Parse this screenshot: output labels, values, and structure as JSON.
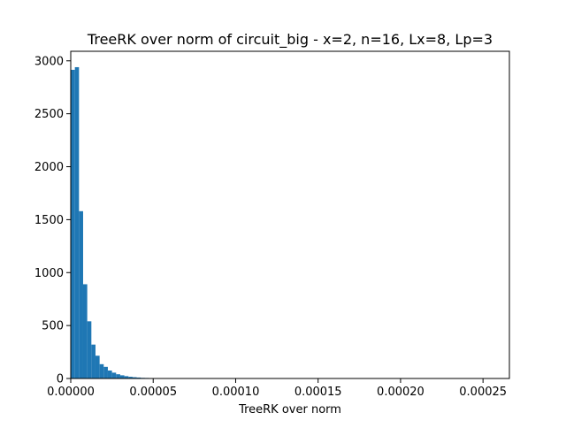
{
  "chart_data": {
    "type": "bar",
    "title": "TreeRK over norm of circuit_big - x=2, n=16, Lx=8, Lp=3",
    "xlabel": "TreeRK over norm",
    "ylabel": "",
    "xlim": [
      0,
      0.000266
    ],
    "ylim": [
      0,
      3090
    ],
    "bin_width": 2.5e-06,
    "bin_start": 0,
    "values": [
      2915,
      2940,
      1580,
      890,
      540,
      320,
      215,
      135,
      110,
      75,
      55,
      40,
      30,
      22,
      16,
      12,
      9,
      6,
      5,
      4,
      3,
      2,
      2,
      1,
      1,
      1
    ],
    "xticks": [
      0,
      5e-05,
      0.0001,
      0.00015,
      0.0002,
      0.00025
    ],
    "xtick_labels": [
      "0.00000",
      "0.00005",
      "0.00010",
      "0.00015",
      "0.00020",
      "0.00025"
    ],
    "yticks": [
      0,
      500,
      1000,
      1500,
      2000,
      2500,
      3000
    ],
    "ytick_labels": [
      "0",
      "500",
      "1000",
      "1500",
      "2000",
      "2500",
      "3000"
    ],
    "bar_color": "#1f77b4",
    "grid": false,
    "legend": "none"
  }
}
